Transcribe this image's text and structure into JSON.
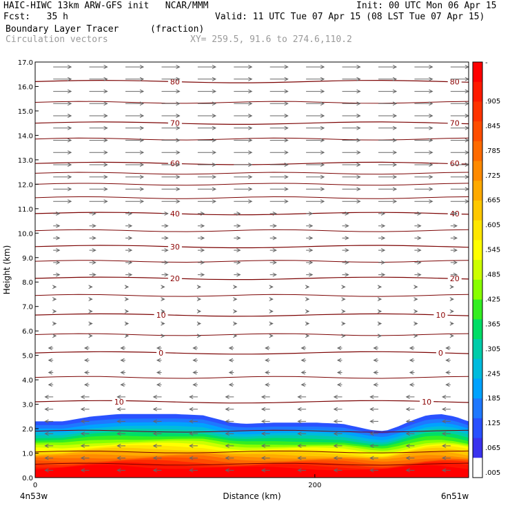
{
  "header": {
    "line1_left": "HAIC-HIWC 13km ARW-GFS init   NCAR/MMM",
    "line1_right": "Init: 00 UTC Mon 06 Apr 15",
    "line2_left": "Fcst:   35 h",
    "line2_right": "Valid: 11 UTC Tue 07 Apr 15 (08 LST Tue 07 Apr 15)",
    "line3_field": "Boundary Layer Tracer",
    "line3_units": "(fraction)",
    "line4_field": "Circulation vectors",
    "line4_xy": "XY= 259.5, 91.6 to 274.6,110.2"
  },
  "chart_data": {
    "type": "heatmap",
    "ylabel": "Height (km)",
    "xlabel": "Distance (km)",
    "ylim": [
      0,
      17
    ],
    "xlim": [
      0,
      310
    ],
    "yticks": [
      "0.0",
      "1.0",
      "2.0",
      "3.0",
      "4.0",
      "5.0",
      "6.0",
      "7.0",
      "8.0",
      "9.0",
      "10.0",
      "11.0",
      "12.0",
      "13.0",
      "14.0",
      "15.0",
      "16.0",
      "17.0"
    ],
    "xticks": [
      {
        "v": 0,
        "label": "0"
      },
      {
        "v": 200,
        "label": "200"
      }
    ],
    "left_location": "4n53w",
    "right_location": "6n51w",
    "tracer_top_profile": {
      "x": [
        0,
        20,
        40,
        60,
        80,
        100,
        120,
        130,
        140,
        150,
        160,
        170,
        180,
        200,
        220,
        240,
        250,
        260,
        270,
        280,
        290,
        300,
        310
      ],
      "height": [
        2.3,
        2.3,
        2.5,
        2.6,
        2.6,
        2.6,
        2.55,
        2.4,
        2.25,
        2.2,
        2.22,
        2.25,
        2.25,
        2.25,
        2.2,
        1.95,
        1.9,
        2.1,
        2.35,
        2.55,
        2.6,
        2.5,
        2.3
      ]
    },
    "isotherms": [
      {
        "label": "80",
        "height": 16.2,
        "label_x": [
          100,
          300
        ]
      },
      {
        "label": "70",
        "height": 14.5,
        "label_x": [
          100,
          300
        ]
      },
      {
        "label": "60",
        "height": 12.85,
        "label_x": [
          100,
          300
        ]
      },
      {
        "label": "40",
        "height": 10.8,
        "label_x": [
          100,
          300
        ]
      },
      {
        "label": "30",
        "height": 9.45,
        "label_x": [
          100
        ]
      },
      {
        "label": "20",
        "height": 8.15,
        "label_x": [
          100,
          300
        ]
      },
      {
        "label": "10",
        "height": 6.65,
        "label_x": [
          90,
          290
        ]
      },
      {
        "label": "0",
        "height": 5.1,
        "label_x": [
          90,
          290
        ]
      },
      {
        "label": "10",
        "height": 3.1,
        "label_x": [
          60,
          280
        ]
      }
    ],
    "extra_contours": [
      15.35,
      13.85,
      12.45,
      12.0,
      11.45,
      10.1,
      8.85,
      7.45,
      5.85,
      4.1,
      1.9,
      1.05,
      0.55
    ],
    "colorbar": {
      "labels": [
        "-",
        ".905",
        ".845",
        ".785",
        ".725",
        ".665",
        ".605",
        ".545",
        ".485",
        ".425",
        ".365",
        ".305",
        ".245",
        ".185",
        ".125",
        ".065",
        ".005"
      ],
      "colors": [
        "#ff0000",
        "#ff1a00",
        "#ff3300",
        "#ff4d00",
        "#ff6a00",
        "#ff8a00",
        "#ffaa00",
        "#ffc800",
        "#ffe600",
        "#ffff00",
        "#ccff00",
        "#88ff00",
        "#33ee22",
        "#00dd66",
        "#00ccaa",
        "#00bbdd",
        "#00a2ff",
        "#1e78ff",
        "#2850ff",
        "#3a32ee",
        "#ffffff"
      ]
    }
  }
}
